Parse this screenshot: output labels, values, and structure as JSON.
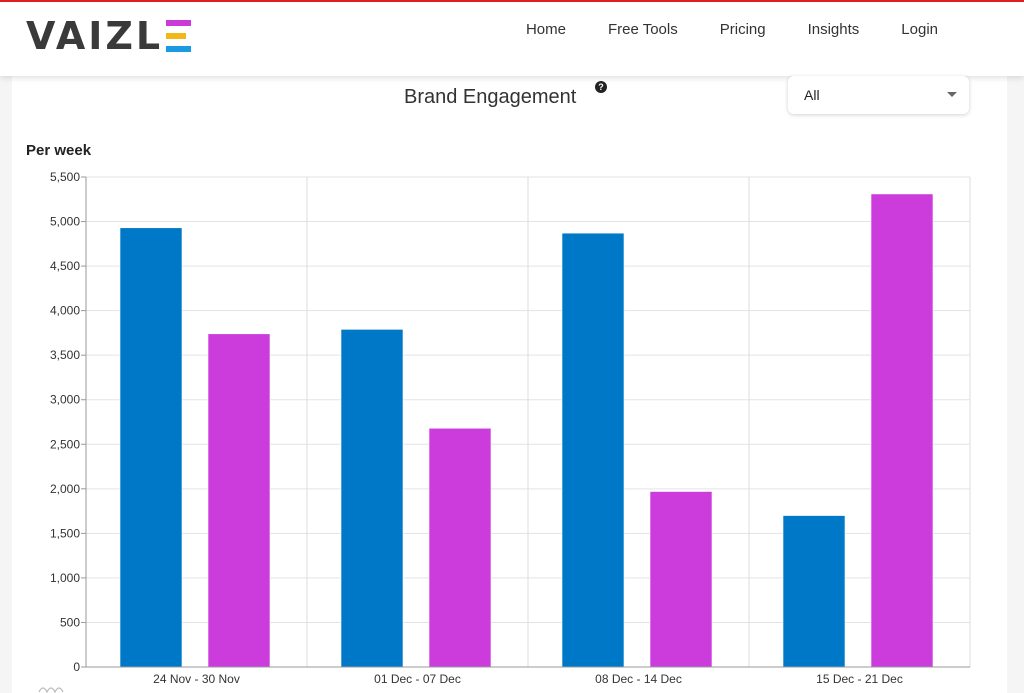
{
  "header": {
    "logo_text": "VAIZL",
    "logo_letter": "E",
    "nav": [
      "Home",
      "Free Tools",
      "Pricing",
      "Insights",
      "Login"
    ]
  },
  "colors": {
    "series_1": "#0078c8",
    "series_2": "#cc3bdb",
    "accent_strip": "#e02020"
  },
  "filter": {
    "selected": "All"
  },
  "chart_data": {
    "type": "bar",
    "title": "Brand Engagement",
    "ylabel": "Per week",
    "xlabel": "",
    "categories": [
      "24 Nov - 30 Nov",
      "01 Dec - 07 Dec",
      "08 Dec - 14 Dec",
      "15 Dec - 21 Dec"
    ],
    "series": [
      {
        "values": [
          4930,
          3790,
          4870,
          1700
        ]
      },
      {
        "values": [
          3740,
          2680,
          1970,
          5310
        ]
      }
    ],
    "ylim": [
      0,
      5500
    ],
    "yticks": [
      0,
      500,
      1000,
      1500,
      2000,
      2500,
      3000,
      3500,
      4000,
      4500,
      5000,
      5500
    ],
    "ytick_labels": [
      "0",
      "500",
      "1,000",
      "1,500",
      "2,000",
      "2,500",
      "3,000",
      "3,500",
      "4,000",
      "4,500",
      "5,000",
      "5,500"
    ],
    "grid": true,
    "legend": "none"
  }
}
